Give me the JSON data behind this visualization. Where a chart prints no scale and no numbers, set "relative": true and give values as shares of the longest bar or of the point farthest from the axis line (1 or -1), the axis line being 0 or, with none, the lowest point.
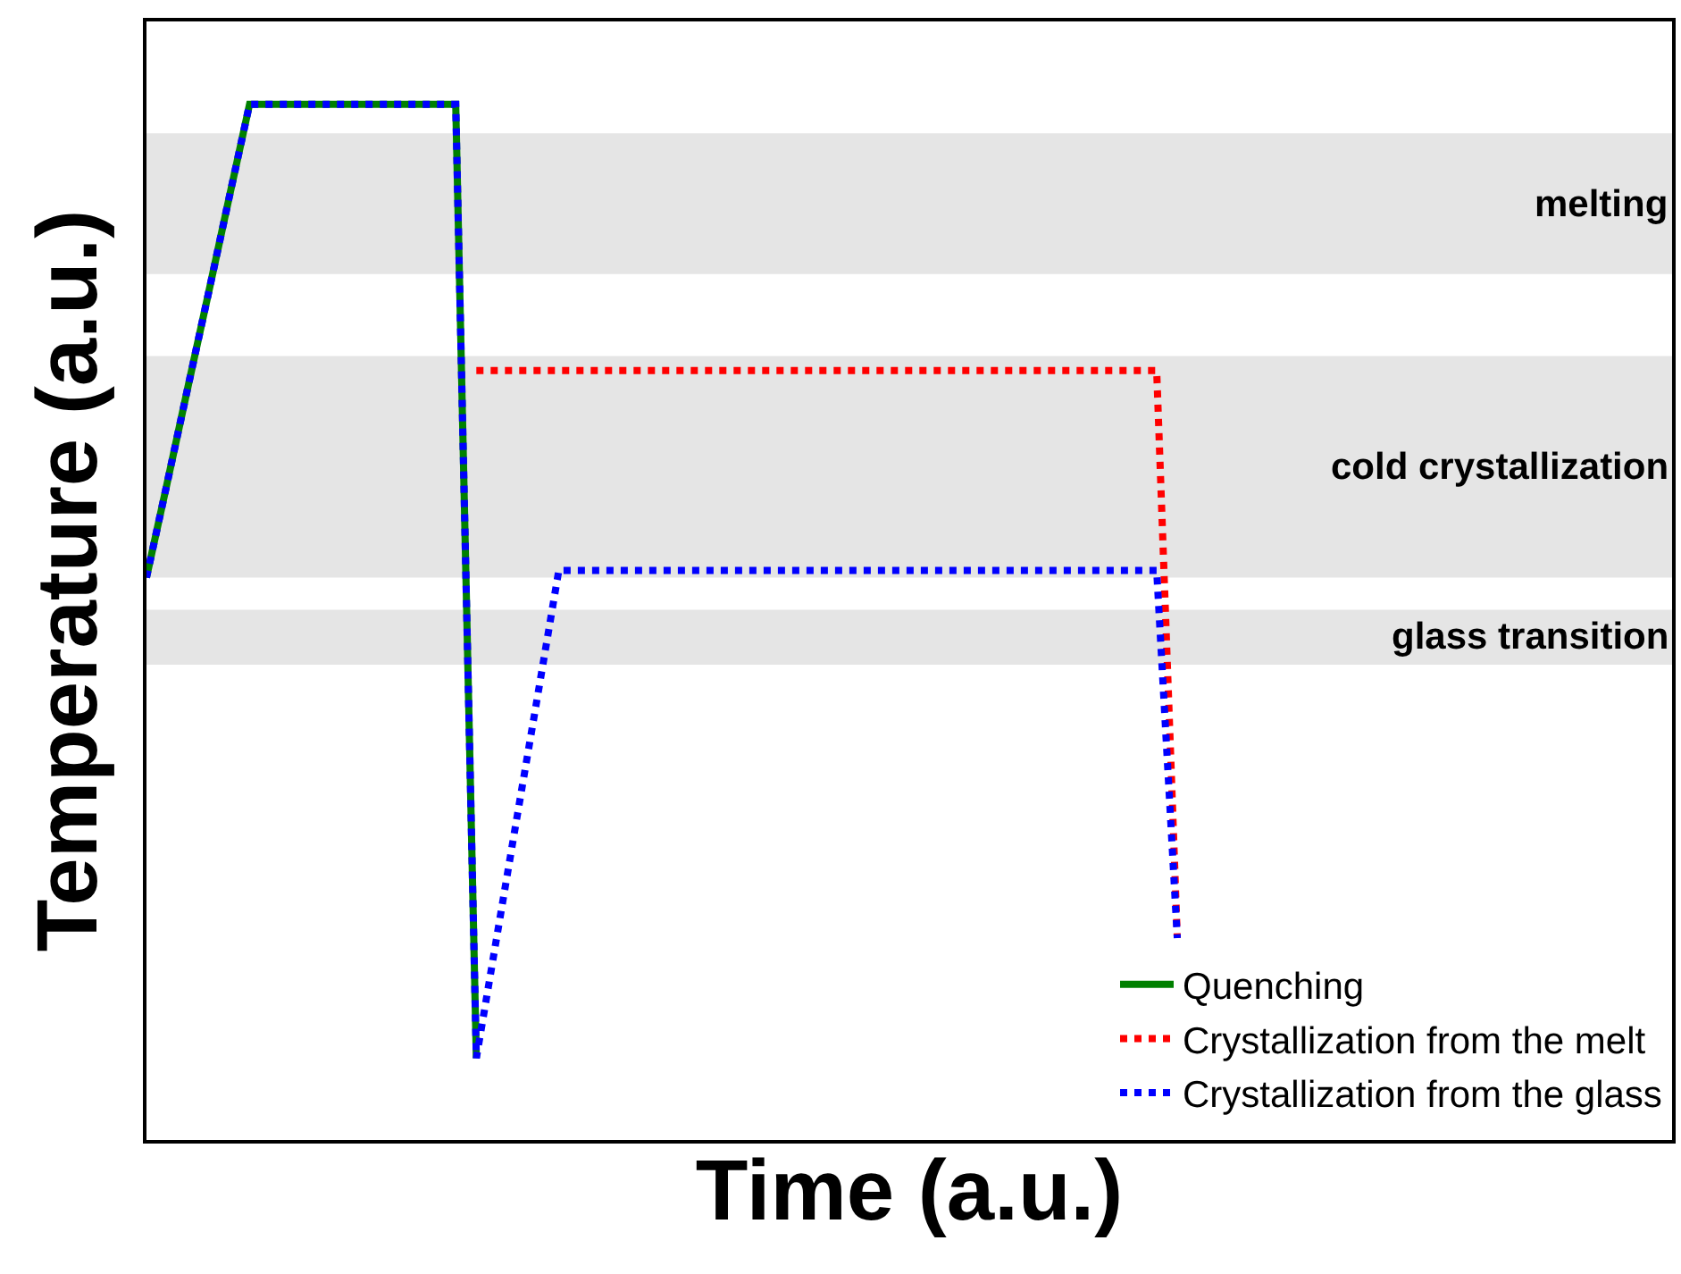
{
  "chart_data": {
    "type": "line",
    "relative": true,
    "xlabel": "Time (a.u.)",
    "ylabel": "Temperature (a.u.)",
    "tick_labels": false,
    "grid": false,
    "legend": "bottom right",
    "marker": "none",
    "categories": [
      null,
      null,
      null,
      null,
      null,
      null,
      null,
      null,
      null,
      null,
      null,
      null,
      null,
      null,
      null,
      null,
      null,
      null,
      null,
      null,
      null,
      null,
      null,
      null,
      null,
      null,
      null,
      null,
      null,
      null,
      null,
      null,
      null,
      null,
      null,
      null,
      null,
      null,
      null,
      null,
      null,
      null,
      null,
      null,
      null,
      null,
      null,
      null,
      null,
      null,
      null,
      null,
      null,
      null,
      null,
      null,
      null,
      null,
      null,
      null,
      null,
      null,
      null,
      null,
      null,
      null,
      null,
      null,
      null,
      null,
      null,
      null,
      null,
      null,
      null
    ],
    "series": [
      {
        "name": "Quenching",
        "color": "#008000",
        "line_style": "solid",
        "values": [
          0.543,
          0.634,
          0.726,
          0.817,
          0.909,
          1,
          1,
          1,
          1,
          1,
          1,
          1,
          1,
          1,
          1,
          1,
          0.079,
          null,
          null,
          null,
          null,
          null,
          null,
          null,
          null,
          null,
          null,
          null,
          null,
          null,
          null,
          null,
          null,
          null,
          null,
          null,
          null,
          null,
          null,
          null,
          null,
          null,
          null,
          null,
          null,
          null,
          null,
          null,
          null,
          null,
          null,
          null,
          null,
          null,
          null,
          null,
          null,
          null,
          null,
          null,
          null,
          null,
          null,
          null,
          null,
          null,
          null,
          null,
          null,
          null,
          null,
          null,
          null,
          null,
          null
        ]
      },
      {
        "name": "Crystallization from the melt",
        "color": "#ff0000",
        "line_style": "dotted",
        "values": [
          null,
          null,
          null,
          null,
          null,
          null,
          null,
          null,
          null,
          null,
          null,
          null,
          null,
          null,
          null,
          null,
          0.743,
          0.743,
          0.743,
          0.743,
          0.743,
          0.743,
          0.743,
          0.743,
          0.743,
          0.743,
          0.743,
          0.743,
          0.743,
          0.743,
          0.743,
          0.743,
          0.743,
          0.743,
          0.743,
          0.743,
          0.743,
          0.743,
          0.743,
          0.743,
          0.743,
          0.743,
          0.743,
          0.743,
          0.743,
          0.743,
          0.743,
          0.743,
          0.743,
          0.743,
          0.195,
          null,
          null,
          null,
          null,
          null,
          null,
          null,
          null,
          null,
          null,
          null,
          null,
          null,
          null,
          null,
          null,
          null,
          null,
          null,
          null,
          null,
          null,
          null,
          null
        ]
      },
      {
        "name": "Crystallization from the glass",
        "color": "#0000ff",
        "line_style": "dotted",
        "values": [
          0.543,
          0.634,
          0.726,
          0.817,
          0.909,
          1,
          1,
          1,
          1,
          1,
          1,
          1,
          1,
          1,
          1,
          1,
          0.079,
          0.197,
          0.315,
          0.432,
          0.55,
          0.55,
          0.55,
          0.55,
          0.55,
          0.55,
          0.55,
          0.55,
          0.55,
          0.55,
          0.55,
          0.55,
          0.55,
          0.55,
          0.55,
          0.55,
          0.55,
          0.55,
          0.55,
          0.55,
          0.55,
          0.55,
          0.55,
          0.55,
          0.55,
          0.55,
          0.55,
          0.55,
          0.55,
          0.55,
          0.195,
          null,
          null,
          null,
          null,
          null,
          null,
          null,
          null,
          null,
          null,
          null,
          null,
          null,
          null,
          null,
          null,
          null,
          null,
          null,
          null,
          null,
          null,
          null,
          null
        ]
      }
    ],
    "bands": [
      {
        "axis": "y",
        "from": 0.836,
        "to": 0.972,
        "label": "melting",
        "color": "#e5e5e5"
      },
      {
        "axis": "y",
        "from": 0.543,
        "to": 0.757,
        "label": "cold crystallization",
        "color": "#e5e5e5"
      },
      {
        "axis": "y",
        "from": 0.459,
        "to": 0.512,
        "label": "glass transition",
        "color": "#e5e5e5"
      }
    ]
  }
}
